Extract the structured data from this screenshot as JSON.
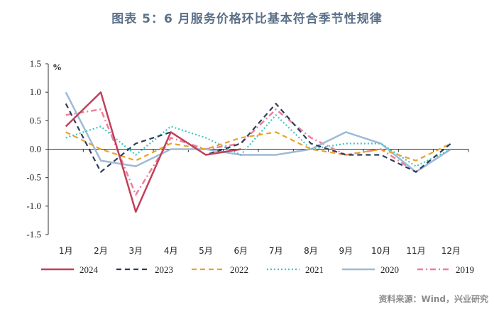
{
  "title": "图表 5：6 月服务价格环比基本符合季节性规律",
  "source": "资料来源：Wind，兴业研究",
  "chart_data": {
    "type": "line",
    "title": "图表 5：6 月服务价格环比基本符合季节性规律",
    "ylabel": "%",
    "xlabel": "",
    "ylim": [
      -1.5,
      1.5
    ],
    "yticks": [
      1.5,
      1.0,
      0.5,
      0.0,
      -0.5,
      -1.0,
      -1.5
    ],
    "ytick_labels": [
      "1.5",
      "1.0",
      "0.5",
      "0.0",
      "-0.5",
      "-1.0",
      "-1.5"
    ],
    "categories": [
      "1月",
      "2月",
      "3月",
      "4月",
      "5月",
      "6月",
      "7月",
      "8月",
      "9月",
      "10月",
      "11月",
      "12月"
    ],
    "grid": false,
    "legend_position": "bottom",
    "series": [
      {
        "name": "2024",
        "color": "#c0405a",
        "dash": "solid",
        "width": 2.5,
        "values": [
          0.4,
          1.0,
          -1.1,
          0.3,
          -0.1,
          0.0,
          null,
          null,
          null,
          null,
          null,
          null
        ]
      },
      {
        "name": "2023",
        "color": "#2c3e5a",
        "dash": "dash",
        "width": 2.2,
        "values": [
          0.8,
          -0.4,
          0.1,
          0.3,
          -0.1,
          0.1,
          0.8,
          0.1,
          -0.1,
          -0.1,
          -0.4,
          0.1
        ]
      },
      {
        "name": "2022",
        "color": "#e8a32a",
        "dash": "dash",
        "width": 2.2,
        "values": [
          0.3,
          0.0,
          -0.2,
          0.1,
          0.0,
          0.2,
          0.3,
          0.0,
          -0.1,
          0.0,
          -0.2,
          0.1
        ]
      },
      {
        "name": "2021",
        "color": "#3cc6c2",
        "dash": "dot",
        "width": 2.2,
        "values": [
          0.2,
          0.4,
          -0.1,
          0.4,
          0.2,
          -0.1,
          0.6,
          0.0,
          0.1,
          0.1,
          -0.3,
          0.0
        ]
      },
      {
        "name": "2020",
        "color": "#9fbad6",
        "dash": "solid",
        "width": 2.5,
        "values": [
          1.0,
          -0.2,
          -0.3,
          0.0,
          0.0,
          -0.1,
          -0.1,
          0.0,
          0.3,
          0.1,
          -0.4,
          0.0
        ]
      },
      {
        "name": "2019",
        "color": "#ef7f9a",
        "dash": "dashdot",
        "width": 2.5,
        "values": [
          0.6,
          0.7,
          -0.8,
          0.2,
          0.0,
          0.1,
          0.7,
          0.2,
          -0.1,
          0.0,
          -0.4,
          0.0
        ]
      }
    ]
  }
}
